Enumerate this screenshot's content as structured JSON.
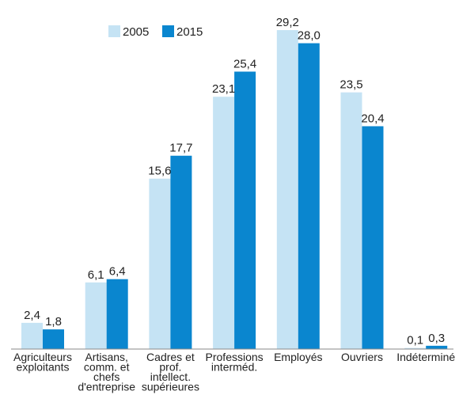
{
  "chart_data": {
    "type": "bar",
    "categories": [
      [
        "Agriculteurs",
        "exploitants"
      ],
      [
        "Artisans,",
        "comm. et",
        "chefs",
        "d'entreprise"
      ],
      [
        "Cadres et",
        "prof.",
        "intellect.",
        "supérieures"
      ],
      [
        "Professions",
        "interméd."
      ],
      [
        "Employés"
      ],
      [
        "Ouvriers"
      ],
      [
        "Indéterminé"
      ]
    ],
    "series": [
      {
        "name": "2005",
        "color": "#c5e3f4",
        "values": [
          2.4,
          6.1,
          15.6,
          23.1,
          29.2,
          23.5,
          0.1
        ],
        "labels": [
          "2,4",
          "6,1",
          "15,6",
          "23,1",
          "29,2",
          "23,5",
          "0,1"
        ]
      },
      {
        "name": "2015",
        "color": "#0a86cf",
        "values": [
          1.8,
          6.4,
          17.7,
          25.4,
          28.0,
          20.4,
          0.3
        ],
        "labels": [
          "1,8",
          "6,4",
          "17,7",
          "25,4",
          "28,0",
          "20,4",
          "0,3"
        ]
      }
    ],
    "ylim": [
      0,
      30
    ],
    "grid": false,
    "legend_position": "top-left"
  }
}
